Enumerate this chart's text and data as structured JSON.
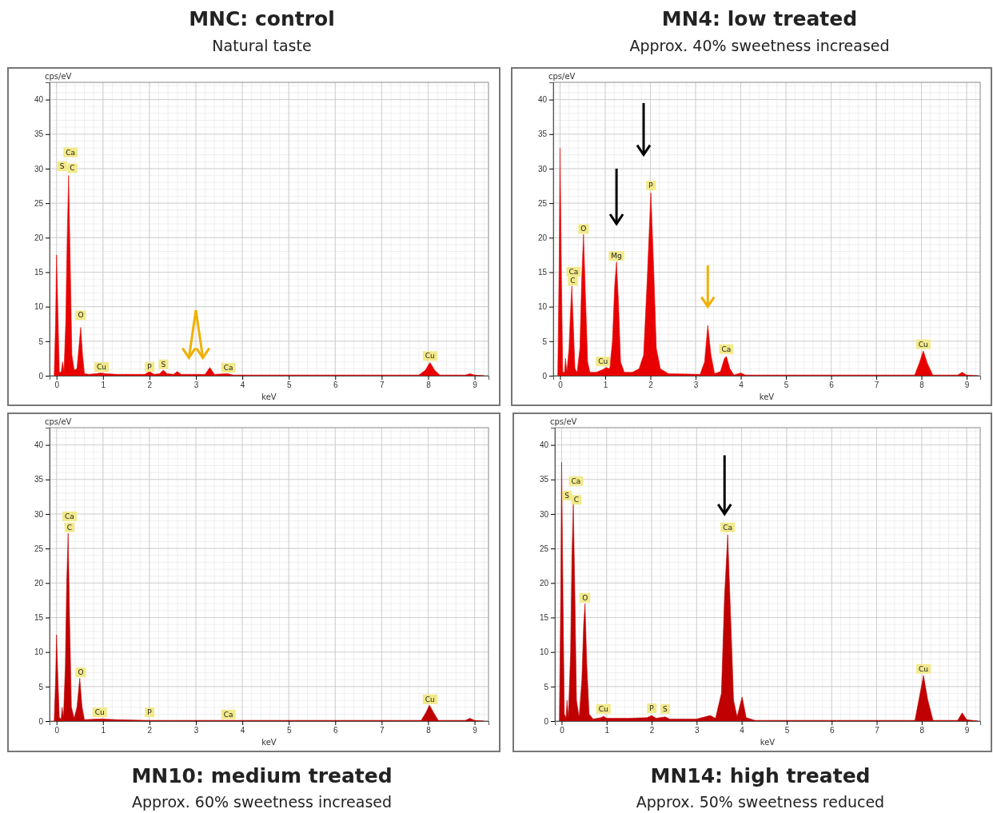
{
  "chart_data": [
    {
      "type": "area",
      "title": "MNC: control",
      "subtitle": "Natural taste",
      "xlabel": "keV",
      "ylabel": "cps/eV",
      "xlim": [
        -0.15,
        9.3
      ],
      "ylim": [
        0,
        42.5
      ],
      "xticks": [
        0,
        1,
        2,
        3,
        4,
        5,
        6,
        7,
        8,
        9
      ],
      "yticks": [
        0,
        5,
        10,
        15,
        20,
        25,
        30,
        35,
        40
      ],
      "grid": true,
      "series": [
        {
          "color": "#e80000",
          "x": [
            -0.05,
            -0.02,
            0,
            0.03,
            0.06,
            0.1,
            0.13,
            0.16,
            0.2,
            0.23,
            0.26,
            0.29,
            0.33,
            0.38,
            0.44,
            0.48,
            0.52,
            0.56,
            0.6,
            0.7,
            0.85,
            0.95,
            1.05,
            1.3,
            1.9,
            2.0,
            2.1,
            2.22,
            2.3,
            2.38,
            2.52,
            2.6,
            2.68,
            3.2,
            3.3,
            3.4,
            3.69,
            3.8,
            5,
            7.8,
            7.94,
            8.04,
            8.14,
            8.25,
            8.8,
            8.9,
            9.0,
            9.2
          ],
          "values": [
            0,
            8,
            17.5,
            9,
            0.5,
            0.5,
            2,
            0.5,
            8,
            20,
            29,
            18,
            3,
            0.8,
            1,
            4,
            7,
            3,
            0.3,
            0.2,
            0.3,
            0.4,
            0.3,
            0.2,
            0.2,
            0.6,
            0.2,
            0.3,
            0.8,
            0.3,
            0.2,
            0.6,
            0.2,
            0.2,
            1.2,
            0.2,
            0.3,
            0.1,
            0.1,
            0.1,
            0.8,
            1.9,
            0.8,
            0.1,
            0.1,
            0.3,
            0.1,
            0
          ]
        }
      ],
      "annotations": [
        {
          "text": "Ca",
          "x": 0.3,
          "y": 32.3
        },
        {
          "text": "S",
          "x": 0.12,
          "y": 30.3
        },
        {
          "text": "C",
          "x": 0.34,
          "y": 30
        },
        {
          "text": "O",
          "x": 0.52,
          "y": 8.7
        },
        {
          "text": "Cu",
          "x": 0.97,
          "y": 1.2
        },
        {
          "text": "P",
          "x": 2.0,
          "y": 1.2
        },
        {
          "text": "S",
          "x": 2.3,
          "y": 1.6
        },
        {
          "text": "Ca",
          "x": 3.7,
          "y": 1.1
        },
        {
          "text": "Cu",
          "x": 8.04,
          "y": 2.8
        }
      ]
    },
    {
      "type": "area",
      "title": "MN4: low treated",
      "subtitle": "Approx. 40% sweetness increased",
      "xlabel": "keV",
      "ylabel": "cps/eV",
      "xlim": [
        -0.15,
        9.3
      ],
      "ylim": [
        0,
        42.5
      ],
      "xticks": [
        0,
        1,
        2,
        3,
        4,
        5,
        6,
        7,
        8,
        9
      ],
      "yticks": [
        0,
        5,
        10,
        15,
        20,
        25,
        30,
        35,
        40
      ],
      "grid": true,
      "series": [
        {
          "color": "#e80000",
          "x": [
            -0.05,
            -0.02,
            0,
            0.03,
            0.06,
            0.1,
            0.12,
            0.15,
            0.2,
            0.23,
            0.26,
            0.29,
            0.33,
            0.38,
            0.44,
            0.48,
            0.52,
            0.56,
            0.61,
            0.66,
            0.8,
            0.95,
            1.02,
            1.1,
            1.16,
            1.21,
            1.25,
            1.29,
            1.34,
            1.42,
            1.6,
            1.75,
            1.85,
            1.93,
            2.01,
            2.07,
            2.13,
            2.22,
            2.4,
            3.1,
            3.2,
            3.27,
            3.34,
            3.42,
            3.55,
            3.64,
            3.68,
            3.76,
            3.85,
            4.0,
            4.1,
            7.85,
            7.95,
            8.04,
            8.13,
            8.25,
            8.8,
            8.9,
            9.0,
            9.25
          ],
          "values": [
            0,
            16,
            33,
            15,
            0.5,
            0.5,
            2.5,
            0.5,
            4,
            9,
            13,
            8,
            1,
            0.5,
            4,
            14,
            20.5,
            12,
            2,
            0.5,
            0.5,
            0.9,
            1.2,
            1,
            5,
            13,
            16.5,
            11,
            2,
            0.5,
            0.5,
            1,
            3,
            14,
            26.5,
            16,
            4,
            1,
            0.3,
            0.2,
            2,
            7.3,
            3,
            0.3,
            0.6,
            2.5,
            2.8,
            1,
            0.1,
            0.4,
            0.1,
            0.1,
            1.8,
            3.6,
            1.8,
            0.1,
            0.1,
            0.5,
            0.1,
            0
          ]
        }
      ],
      "annotations": [
        {
          "text": "Ca",
          "x": 0.3,
          "y": 15
        },
        {
          "text": "C",
          "x": 0.28,
          "y": 13.7
        },
        {
          "text": "O",
          "x": 0.52,
          "y": 21.2
        },
        {
          "text": "Cu",
          "x": 0.95,
          "y": 2
        },
        {
          "text": "Mg",
          "x": 1.25,
          "y": 17.3
        },
        {
          "text": "P",
          "x": 2.01,
          "y": 27.5
        },
        {
          "text": "Ca",
          "x": 3.68,
          "y": 3.8
        },
        {
          "text": "Cu",
          "x": 8.04,
          "y": 4.5
        }
      ]
    },
    {
      "type": "area",
      "title": "MN10: medium treated",
      "subtitle": "Approx. 60% sweetness increased",
      "xlabel": "keV",
      "ylabel": "cps/eV",
      "xlim": [
        -0.15,
        9.3
      ],
      "ylim": [
        0,
        42.5
      ],
      "xticks": [
        0,
        1,
        2,
        3,
        4,
        5,
        6,
        7,
        8,
        9
      ],
      "yticks": [
        0,
        5,
        10,
        15,
        20,
        25,
        30,
        35,
        40
      ],
      "grid": true,
      "series": [
        {
          "color": "#c00000",
          "x": [
            -0.05,
            -0.02,
            0,
            0.03,
            0.06,
            0.1,
            0.12,
            0.15,
            0.19,
            0.22,
            0.25,
            0.28,
            0.32,
            0.38,
            0.44,
            0.5,
            0.55,
            0.6,
            0.9,
            1.0,
            1.3,
            2,
            6.3,
            7.85,
            7.95,
            8.03,
            8.12,
            8.22,
            8.8,
            8.9,
            9.0,
            9.2
          ],
          "values": [
            0,
            6,
            12.5,
            6,
            0.5,
            0.3,
            2,
            0.5,
            8,
            20,
            27.2,
            15,
            2,
            0.4,
            2,
            6.2,
            2,
            0.2,
            0.3,
            0.3,
            0.2,
            0.1,
            0.1,
            0.1,
            1.2,
            2.3,
            1.2,
            0.1,
            0.1,
            0.4,
            0.1,
            0
          ]
        }
      ],
      "annotations": [
        {
          "text": "Ca",
          "x": 0.28,
          "y": 29.6
        },
        {
          "text": "C",
          "x": 0.28,
          "y": 28
        },
        {
          "text": "O",
          "x": 0.52,
          "y": 7
        },
        {
          "text": "Cu",
          "x": 0.93,
          "y": 1.2
        },
        {
          "text": "P",
          "x": 2.0,
          "y": 1.2
        },
        {
          "text": "Ca",
          "x": 3.7,
          "y": 0.9
        },
        {
          "text": "Cu",
          "x": 8.04,
          "y": 3.1
        }
      ]
    },
    {
      "type": "area",
      "title": "MN14: high treated",
      "subtitle": "Approx. 50% sweetness reduced",
      "xlabel": "keV",
      "ylabel": "cps/eV",
      "xlim": [
        -0.15,
        9.3
      ],
      "ylim": [
        0,
        42.5
      ],
      "xticks": [
        0,
        1,
        2,
        3,
        4,
        5,
        6,
        7,
        8,
        9
      ],
      "yticks": [
        0,
        5,
        10,
        15,
        20,
        25,
        30,
        35,
        40
      ],
      "grid": true,
      "series": [
        {
          "color": "#c00000",
          "x": [
            -0.05,
            -0.02,
            0,
            0.03,
            0.06,
            0.1,
            0.12,
            0.15,
            0.2,
            0.23,
            0.26,
            0.29,
            0.33,
            0.39,
            0.45,
            0.49,
            0.52,
            0.56,
            0.61,
            0.7,
            0.88,
            0.93,
            1.0,
            1.5,
            1.9,
            2.0,
            2.1,
            2.3,
            2.4,
            3.0,
            3.3,
            3.42,
            3.55,
            3.62,
            3.69,
            3.75,
            3.82,
            3.9,
            4.01,
            4.1,
            4.3,
            7.85,
            7.95,
            8.04,
            8.13,
            8.25,
            8.8,
            8.9,
            9.0,
            9.25
          ],
          "values": [
            0,
            18,
            37.5,
            18,
            1,
            0.5,
            3,
            0.5,
            10,
            24,
            31.5,
            20,
            3,
            0.5,
            6,
            14,
            17,
            8,
            1,
            0.3,
            0.5,
            0.7,
            0.4,
            0.4,
            0.5,
            0.8,
            0.4,
            0.6,
            0.3,
            0.3,
            0.8,
            0.4,
            4,
            18,
            27,
            16,
            3,
            0.6,
            3.5,
            0.5,
            0.1,
            0.1,
            3.5,
            6.6,
            3.2,
            0.1,
            0.1,
            1.2,
            0.2,
            0
          ]
        }
      ],
      "annotations": [
        {
          "text": "Ca",
          "x": 0.32,
          "y": 34.7
        },
        {
          "text": "S",
          "x": 0.12,
          "y": 32.6
        },
        {
          "text": "C",
          "x": 0.33,
          "y": 32
        },
        {
          "text": "O",
          "x": 0.52,
          "y": 17.8
        },
        {
          "text": "Cu",
          "x": 0.93,
          "y": 1.7
        },
        {
          "text": "P",
          "x": 2.0,
          "y": 1.8
        },
        {
          "text": "S",
          "x": 2.3,
          "y": 1.7
        },
        {
          "text": "Ca",
          "x": 3.69,
          "y": 28
        },
        {
          "text": "Cu",
          "x": 8.04,
          "y": 7.5
        }
      ]
    }
  ]
}
